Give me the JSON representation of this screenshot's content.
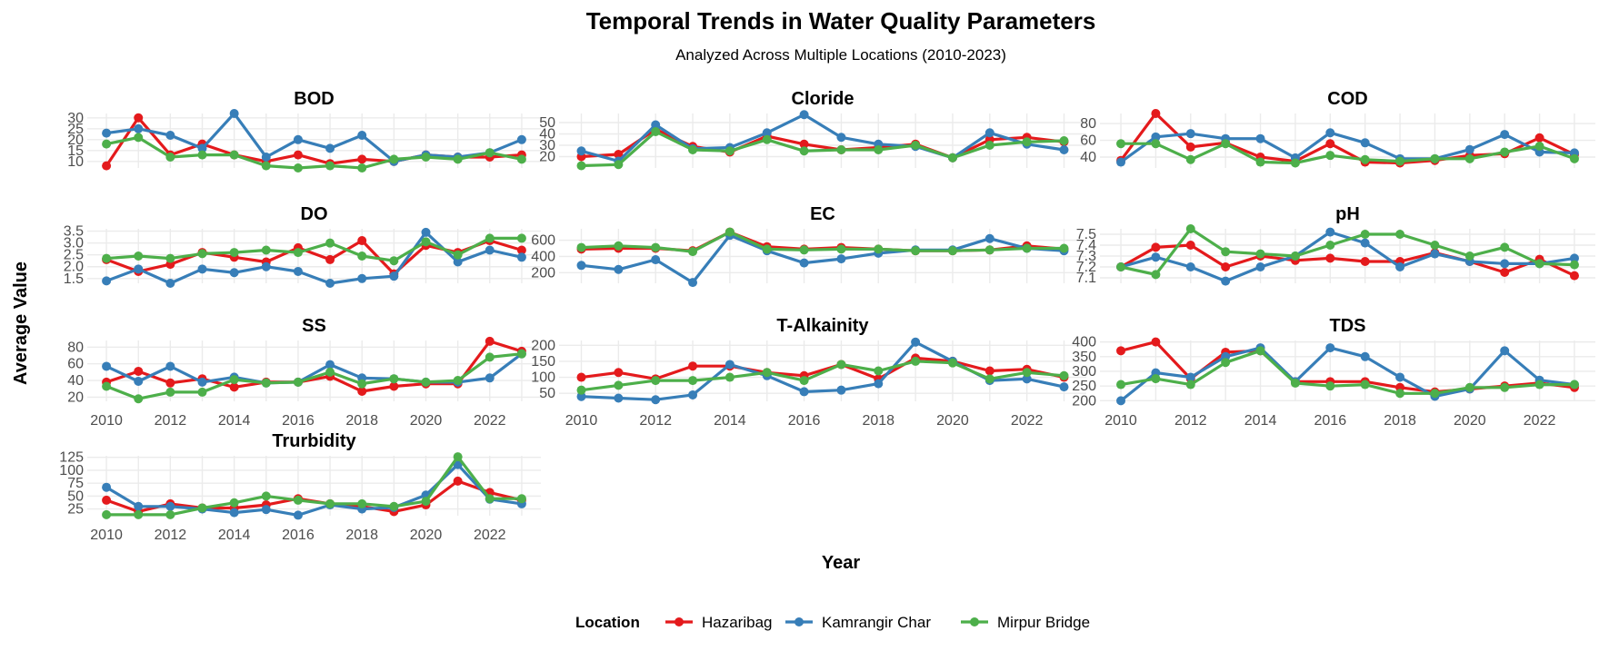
{
  "title": "Temporal Trends in Water Quality Parameters",
  "subtitle": "Analyzed Across Multiple Locations (2010-2023)",
  "chart_data": {
    "type": "line",
    "xlabel": "Year",
    "ylabel": "Average Value",
    "grid": true,
    "legend_position": "bottom",
    "legend": {
      "title": "Location",
      "entries": [
        {
          "name": "Hazaribag",
          "color": "#e41a1c"
        },
        {
          "name": "Kamrangir Char",
          "color": "#377eb8"
        },
        {
          "name": "Mirpur Bridge",
          "color": "#4daf4a"
        }
      ]
    },
    "x": [
      2010,
      2011,
      2012,
      2013,
      2014,
      2015,
      2016,
      2017,
      2018,
      2019,
      2020,
      2021,
      2022,
      2023
    ],
    "x_ticks": [
      "2010",
      "2012",
      "2014",
      "2016",
      "2018",
      "2020",
      "2022"
    ],
    "panels": [
      {
        "title": "BOD",
        "ylim": [
          7,
          32
        ],
        "y_ticks": [
          "10",
          "15",
          "20",
          "25",
          "30"
        ],
        "series": [
          {
            "name": "Hazaribag",
            "values": [
              8,
              30,
              13,
              18,
              13,
              10,
              13,
              9,
              11,
              10,
              13,
              12,
              12,
              13
            ]
          },
          {
            "name": "Kamrangir Char",
            "values": [
              23,
              25,
              22,
              16,
              32,
              12,
              20,
              16,
              22,
              10,
              13,
              12,
              14,
              20
            ]
          },
          {
            "name": "Mirpur Bridge",
            "values": [
              18,
              21,
              12,
              13,
              13,
              8,
              7,
              8,
              7,
              11,
              12,
              11,
              14,
              11
            ]
          }
        ]
      },
      {
        "title": "Cloride",
        "ylim": [
          10,
          58
        ],
        "y_ticks": [
          "20",
          "30",
          "40",
          "50"
        ],
        "series": [
          {
            "name": "Hazaribag",
            "values": [
              20,
              22,
              44,
              29,
              24,
              38,
              31,
              26,
              28,
              31,
              19,
              35,
              37,
              33
            ]
          },
          {
            "name": "Kamrangir Char",
            "values": [
              25,
              16,
              48,
              27,
              28,
              41,
              57,
              37,
              31,
              29,
              19,
              41,
              31,
              26
            ]
          },
          {
            "name": "Mirpur Bridge",
            "values": [
              12,
              13,
              42,
              26,
              25,
              35,
              25,
              26,
              26,
              30,
              19,
              30,
              33,
              34
            ]
          }
        ]
      },
      {
        "title": "COD",
        "ylim": [
          27,
          92
        ],
        "y_ticks": [
          "40",
          "60",
          "80"
        ],
        "series": [
          {
            "name": "Hazaribag",
            "values": [
              36,
              92,
              52,
              57,
              40,
              35,
              56,
              34,
              33,
              36,
              42,
              44,
              63,
              43
            ]
          },
          {
            "name": "Kamrangir Char",
            "values": [
              34,
              64,
              68,
              62,
              62,
              39,
              69,
              57,
              38,
              38,
              49,
              67,
              46,
              45
            ]
          },
          {
            "name": "Mirpur Bridge",
            "values": [
              56,
              56,
              37,
              56,
              34,
              33,
              42,
              37,
              35,
              38,
              38,
              46,
              53,
              38
            ]
          }
        ]
      },
      {
        "title": "DO",
        "ylim": [
          1.3,
          3.6
        ],
        "y_ticks": [
          "1.5",
          "2.0",
          "2.5",
          "3.0",
          "3.5"
        ],
        "series": [
          {
            "name": "Hazaribag",
            "values": [
              2.3,
              1.8,
              2.1,
              2.6,
              2.4,
              2.2,
              2.8,
              2.3,
              3.1,
              1.7,
              2.9,
              2.6,
              3.1,
              2.7
            ]
          },
          {
            "name": "Kamrangir Char",
            "values": [
              1.4,
              1.9,
              1.3,
              1.9,
              1.75,
              2.0,
              1.8,
              1.3,
              1.5,
              1.6,
              3.45,
              2.2,
              2.7,
              2.4
            ]
          },
          {
            "name": "Mirpur Bridge",
            "values": [
              2.35,
              2.45,
              2.35,
              2.55,
              2.6,
              2.7,
              2.6,
              3.0,
              2.45,
              2.25,
              3.05,
              2.5,
              3.2,
              3.2
            ]
          }
        ]
      },
      {
        "title": "EC",
        "ylim": [
          70,
          740
        ],
        "y_ticks": [
          "200",
          "400",
          "600"
        ],
        "series": [
          {
            "name": "Hazaribag",
            "values": [
              490,
              500,
              500,
              470,
              700,
              520,
              490,
              510,
              490,
              470,
              470,
              480,
              530,
              490
            ]
          },
          {
            "name": "Kamrangir Char",
            "values": [
              290,
              240,
              360,
              80,
              660,
              470,
              320,
              370,
              440,
              480,
              480,
              620,
              500,
              470
            ]
          },
          {
            "name": "Mirpur Bridge",
            "values": [
              510,
              530,
              510,
              460,
              700,
              490,
              480,
              490,
              490,
              470,
              470,
              480,
              500,
              500
            ]
          }
        ]
      },
      {
        "title": "pH",
        "ylim": [
          7.05,
          7.55
        ],
        "y_ticks": [
          "7.1",
          "7.2",
          "7.3",
          "7.4",
          "7.5"
        ],
        "series": [
          {
            "name": "Hazaribag",
            "values": [
              7.2,
              7.38,
              7.4,
              7.2,
              7.3,
              7.26,
              7.28,
              7.25,
              7.25,
              7.33,
              7.25,
              7.15,
              7.27,
              7.12
            ]
          },
          {
            "name": "Kamrangir Char",
            "values": [
              7.2,
              7.29,
              7.2,
              7.07,
              7.2,
              7.3,
              7.52,
              7.42,
              7.2,
              7.32,
              7.25,
              7.23,
              7.23,
              7.28
            ]
          },
          {
            "name": "Mirpur Bridge",
            "values": [
              7.2,
              7.13,
              7.55,
              7.34,
              7.32,
              7.3,
              7.4,
              7.5,
              7.5,
              7.4,
              7.3,
              7.38,
              7.23,
              7.22
            ]
          }
        ]
      },
      {
        "title": "SS",
        "ylim": [
          15,
          88
        ],
        "y_ticks": [
          "20",
          "40",
          "60",
          "80"
        ],
        "series": [
          {
            "name": "Hazaribag",
            "values": [
              38,
              51,
              37,
              42,
              32,
              38,
              38,
              45,
              27,
              33,
              36,
              36,
              87,
              75
            ]
          },
          {
            "name": "Kamrangir Char",
            "values": [
              57,
              39,
              57,
              38,
              44,
              37,
              38,
              59,
              43,
              42,
              38,
              38,
              43,
              72
            ]
          },
          {
            "name": "Mirpur Bridge",
            "values": [
              33,
              18,
              26,
              26,
              41,
              37,
              38,
              50,
              36,
              42,
              38,
              40,
              68,
              72
            ]
          }
        ]
      },
      {
        "title": "T-Alkainity",
        "ylim": [
          25,
          215
        ],
        "y_ticks": [
          "50",
          "100",
          "150",
          "200"
        ],
        "series": [
          {
            "name": "Hazaribag",
            "values": [
              100,
              115,
              95,
              135,
              135,
              115,
              105,
              140,
              95,
              160,
              150,
              120,
              125,
              100
            ]
          },
          {
            "name": "Kamrangir Char",
            "values": [
              40,
              35,
              30,
              45,
              140,
              105,
              55,
              60,
              80,
              210,
              150,
              90,
              95,
              70
            ]
          },
          {
            "name": "Mirpur Bridge",
            "values": [
              60,
              75,
              90,
              90,
              100,
              115,
              90,
              140,
              120,
              150,
              145,
              95,
              115,
              105
            ]
          }
        ]
      },
      {
        "title": "TDS",
        "ylim": [
          198,
          405
        ],
        "y_ticks": [
          "200",
          "250",
          "300",
          "350",
          "400"
        ],
        "series": [
          {
            "name": "Hazaribag",
            "values": [
              370,
              400,
              275,
              365,
              370,
              265,
              265,
              265,
              245,
              230,
              240,
              250,
              260,
              245
            ]
          },
          {
            "name": "Kamrangir Char",
            "values": [
              200,
              295,
              280,
              350,
              380,
              265,
              380,
              350,
              280,
              215,
              240,
              370,
              270,
              255
            ]
          },
          {
            "name": "Mirpur Bridge",
            "values": [
              255,
              275,
              255,
              330,
              370,
              260,
              250,
              255,
              225,
              225,
              245,
              245,
              255,
              255
            ]
          }
        ]
      },
      {
        "title": "Trurbidity",
        "ylim": [
          12,
          128
        ],
        "y_ticks": [
          "25",
          "50",
          "75",
          "100",
          "125"
        ],
        "series": [
          {
            "name": "Hazaribag",
            "values": [
              42,
              20,
              35,
              27,
              27,
              33,
              45,
              35,
              30,
              20,
              33,
              79,
              57,
              42
            ]
          },
          {
            "name": "Kamrangir Char",
            "values": [
              67,
              30,
              30,
              25,
              18,
              24,
              13,
              33,
              25,
              28,
              52,
              111,
              44,
              35
            ]
          },
          {
            "name": "Mirpur Bridge",
            "values": [
              14,
              14,
              14,
              27,
              37,
              50,
              42,
              35,
              35,
              30,
              40,
              126,
              45,
              45
            ]
          }
        ]
      }
    ]
  }
}
